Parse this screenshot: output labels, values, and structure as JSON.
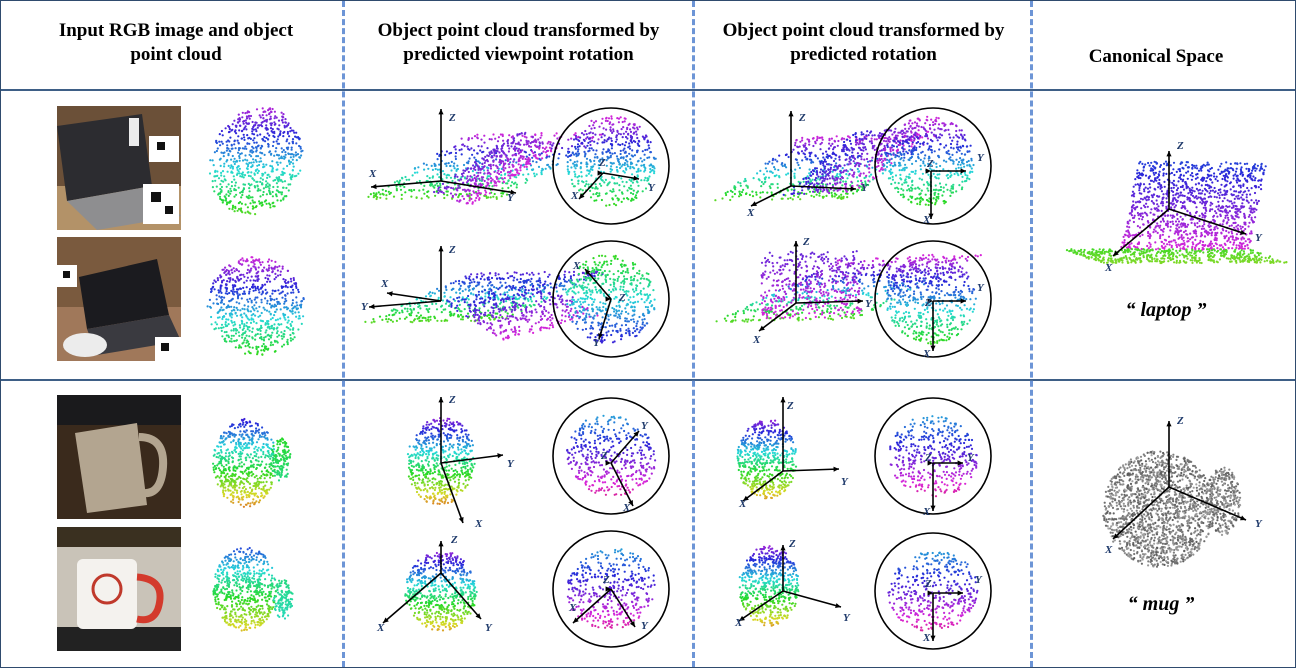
{
  "headers": {
    "col1": "Input RGB image and object point cloud",
    "col2": "Object point cloud transformed by predicted viewpoint rotation",
    "col3": "Object point cloud transformed by predicted rotation",
    "col4": "Canonical Space"
  },
  "categories": {
    "laptop": "“ laptop ”",
    "mug": "“ mug ”"
  },
  "axis_labels": {
    "x": "X",
    "y": "Y",
    "z": "Z"
  },
  "colors": {
    "border": "#2f4b6e",
    "divider": "#3e5f86",
    "dash": "#6d95d6",
    "axis_label": "#1f3a6b"
  }
}
